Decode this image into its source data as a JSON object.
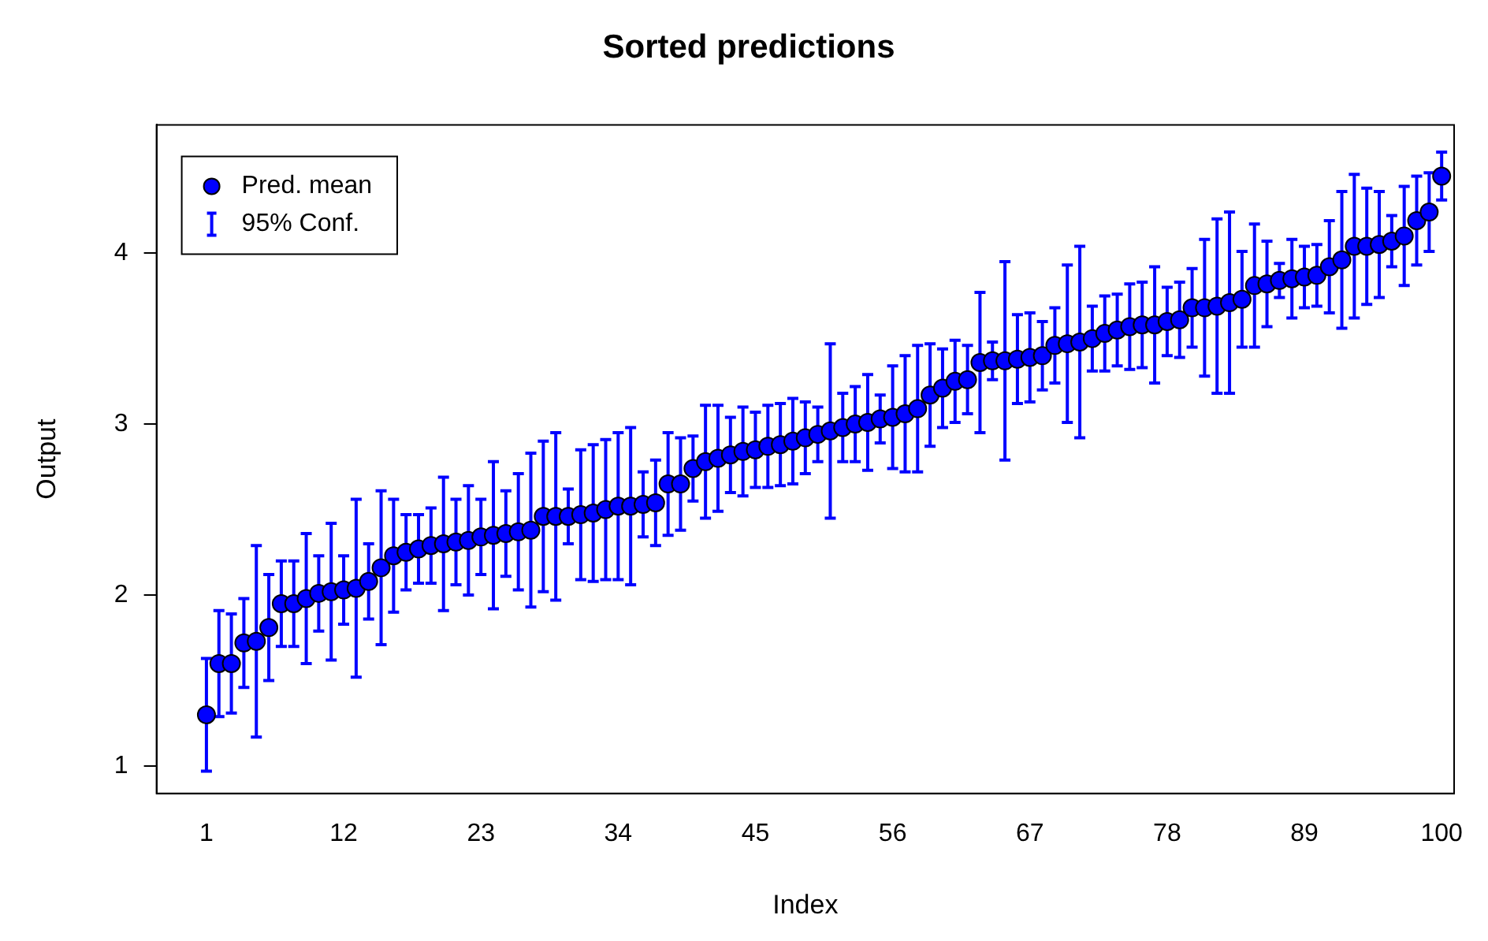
{
  "chart_data": {
    "type": "scatter",
    "title": "Sorted predictions",
    "xlabel": "Index",
    "ylabel": "Output",
    "x": [
      1,
      2,
      3,
      4,
      5,
      6,
      7,
      8,
      9,
      10,
      11,
      12,
      13,
      14,
      15,
      16,
      17,
      18,
      19,
      20,
      21,
      22,
      23,
      24,
      25,
      26,
      27,
      28,
      29,
      30,
      31,
      32,
      33,
      34,
      35,
      36,
      37,
      38,
      39,
      40,
      41,
      42,
      43,
      44,
      45,
      46,
      47,
      48,
      49,
      50,
      51,
      52,
      53,
      54,
      55,
      56,
      57,
      58,
      59,
      60,
      61,
      62,
      63,
      64,
      65,
      66,
      67,
      68,
      69,
      70,
      71,
      72,
      73,
      74,
      75,
      76,
      77,
      78,
      79,
      80,
      81,
      82,
      83,
      84,
      85,
      86,
      87,
      88,
      89,
      90,
      91,
      92,
      93,
      94,
      95,
      96,
      97,
      98,
      99,
      100
    ],
    "series": [
      {
        "name": "Pred. mean",
        "color": "#0000ff",
        "values": [
          1.3,
          1.6,
          1.6,
          1.72,
          1.73,
          1.81,
          1.95,
          1.95,
          1.98,
          2.01,
          2.02,
          2.03,
          2.04,
          2.08,
          2.16,
          2.23,
          2.25,
          2.27,
          2.29,
          2.3,
          2.31,
          2.32,
          2.34,
          2.35,
          2.36,
          2.37,
          2.38,
          2.46,
          2.46,
          2.46,
          2.47,
          2.48,
          2.5,
          2.52,
          2.52,
          2.53,
          2.54,
          2.65,
          2.65,
          2.74,
          2.78,
          2.8,
          2.82,
          2.84,
          2.85,
          2.87,
          2.88,
          2.9,
          2.92,
          2.94,
          2.96,
          2.98,
          3.0,
          3.01,
          3.03,
          3.04,
          3.06,
          3.09,
          3.17,
          3.21,
          3.25,
          3.26,
          3.36,
          3.37,
          3.37,
          3.38,
          3.39,
          3.4,
          3.46,
          3.47,
          3.48,
          3.5,
          3.53,
          3.55,
          3.57,
          3.58,
          3.58,
          3.6,
          3.61,
          3.68,
          3.68,
          3.69,
          3.71,
          3.73,
          3.81,
          3.82,
          3.84,
          3.85,
          3.86,
          3.87,
          3.92,
          3.96,
          4.04,
          4.04,
          4.05,
          4.07,
          4.1,
          4.19,
          4.24,
          4.45
        ],
        "errors": [
          0.33,
          0.31,
          0.29,
          0.26,
          0.56,
          0.31,
          0.25,
          0.25,
          0.38,
          0.22,
          0.4,
          0.2,
          0.52,
          0.22,
          0.45,
          0.33,
          0.22,
          0.2,
          0.22,
          0.39,
          0.25,
          0.32,
          0.22,
          0.43,
          0.25,
          0.34,
          0.45,
          0.44,
          0.49,
          0.16,
          0.38,
          0.4,
          0.41,
          0.43,
          0.46,
          0.19,
          0.25,
          0.3,
          0.27,
          0.19,
          0.33,
          0.31,
          0.22,
          0.26,
          0.22,
          0.24,
          0.24,
          0.25,
          0.21,
          0.16,
          0.51,
          0.2,
          0.22,
          0.28,
          0.14,
          0.3,
          0.34,
          0.37,
          0.3,
          0.23,
          0.24,
          0.2,
          0.41,
          0.11,
          0.58,
          0.26,
          0.26,
          0.2,
          0.22,
          0.46,
          0.56,
          0.19,
          0.22,
          0.21,
          0.25,
          0.25,
          0.34,
          0.2,
          0.22,
          0.23,
          0.4,
          0.51,
          0.53,
          0.28,
          0.36,
          0.25,
          0.1,
          0.23,
          0.18,
          0.18,
          0.27,
          0.4,
          0.42,
          0.34,
          0.31,
          0.15,
          0.29,
          0.26,
          0.23,
          0.14
        ]
      }
    ],
    "annotations": [
      "95% Conf."
    ],
    "marker": "circle",
    "legend": "top left",
    "xlim": [
      -3,
      101
    ],
    "xticks": [
      1,
      12,
      23,
      34,
      45,
      56,
      67,
      78,
      89,
      100
    ],
    "ylim": [
      0.84,
      4.75
    ],
    "yticks": [
      1,
      2,
      3,
      4
    ]
  }
}
